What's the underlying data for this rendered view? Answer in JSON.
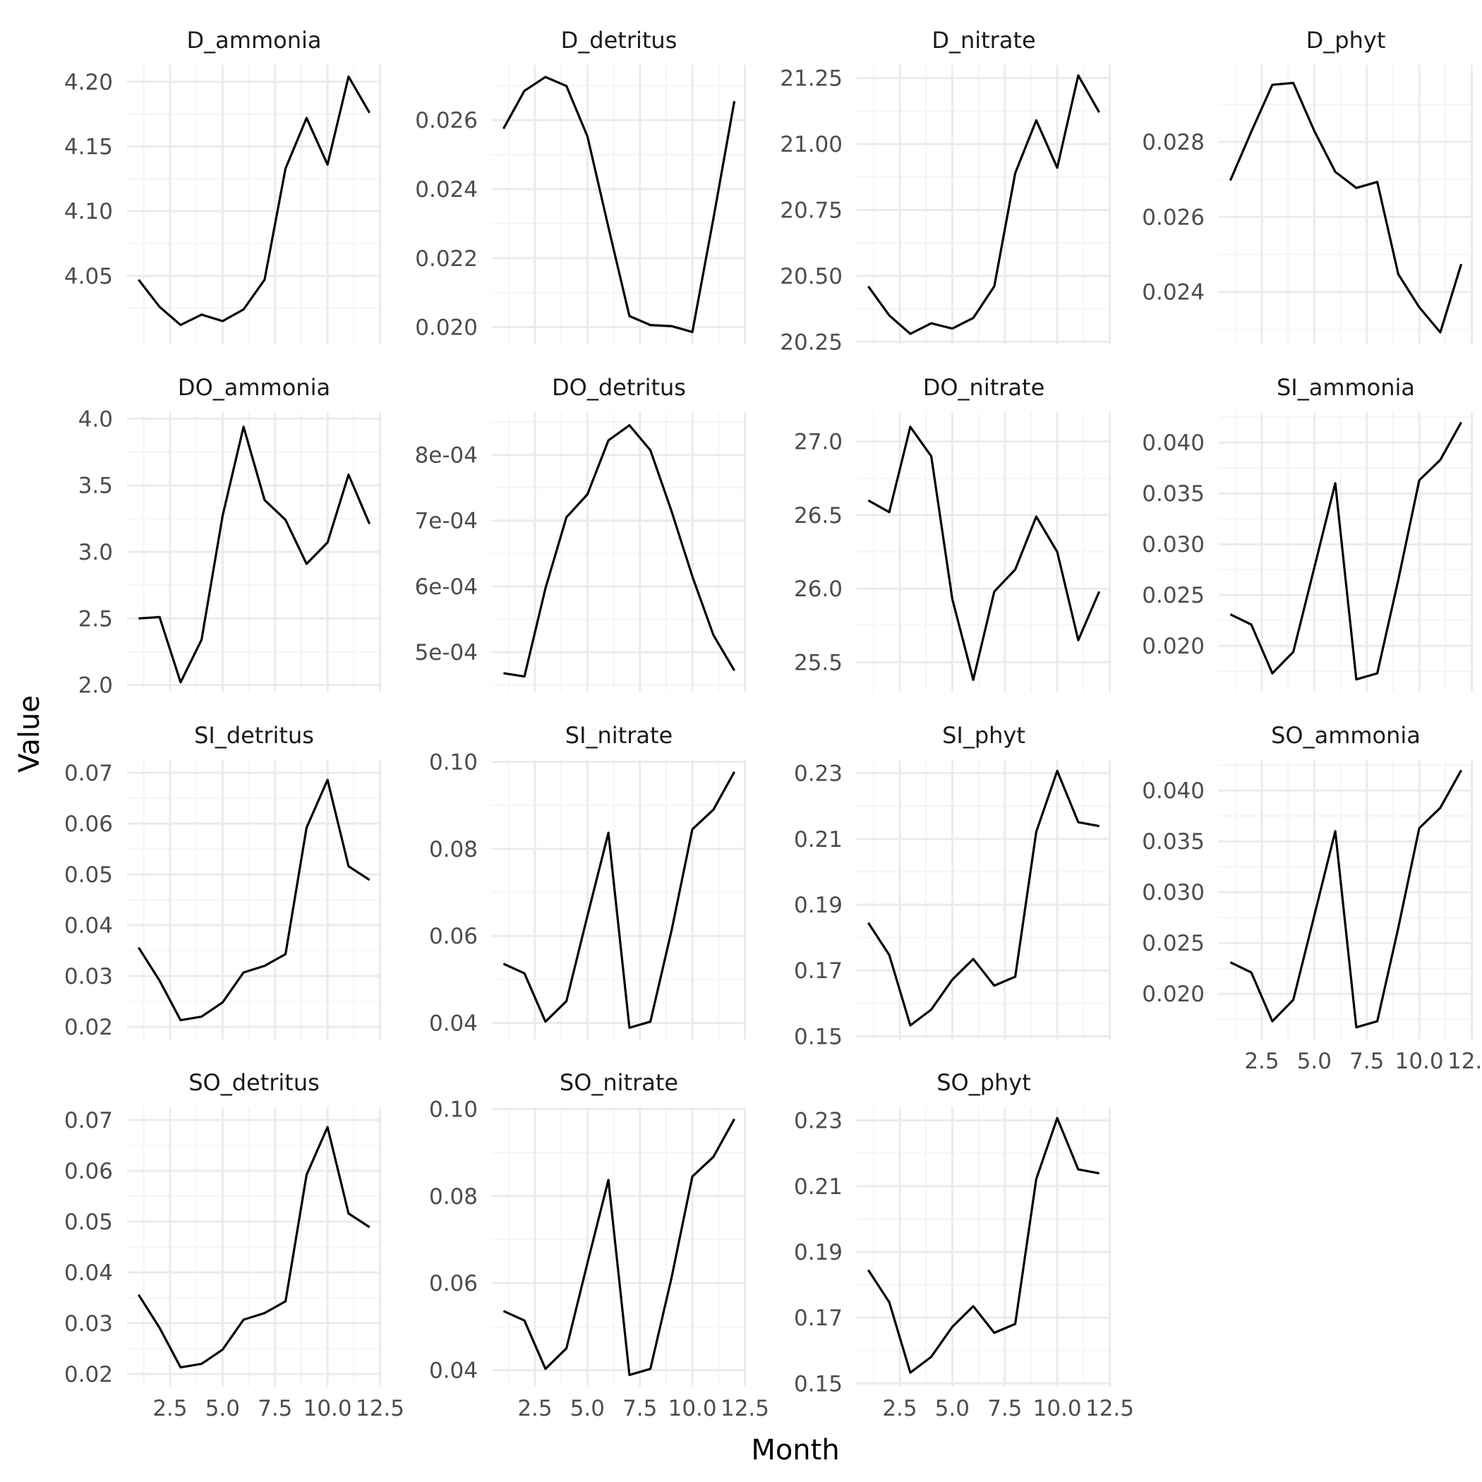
{
  "chart_data": {
    "type": "line",
    "layout": "facet-wrap",
    "xlabel": "Month",
    "ylabel": "Value",
    "grid": true,
    "x": [
      1,
      2,
      3,
      4,
      5,
      6,
      7,
      8,
      9,
      10,
      11,
      12
    ],
    "xlim": [
      0.45,
      12.55
    ],
    "x_ticks": [
      2.5,
      5.0,
      7.5,
      10.0,
      12.5
    ],
    "x_tick_labels": [
      "2.5",
      "5.0",
      "7.5",
      "10.0",
      "12.5"
    ],
    "panels": [
      {
        "name": "D_ammonia",
        "ylim": [
          3.997,
          4.213
        ],
        "y_ticks": [
          4.05,
          4.1,
          4.15,
          4.2
        ],
        "y_tick_labels": [
          "4.05",
          "4.10",
          "4.15",
          "4.20"
        ],
        "values": [
          4.047,
          4.026,
          4.012,
          4.02,
          4.015,
          4.024,
          4.047,
          4.133,
          4.172,
          4.136,
          4.204,
          4.176
        ]
      },
      {
        "name": "D_detritus",
        "ylim": [
          0.0195,
          0.0276
        ],
        "y_ticks": [
          0.02,
          0.022,
          0.024,
          0.026
        ],
        "y_tick_labels": [
          "0.020",
          "0.022",
          "0.024",
          "0.026"
        ],
        "values": [
          0.02575,
          0.02685,
          0.02725,
          0.02699,
          0.02553,
          0.0229,
          0.02032,
          0.02006,
          0.02003,
          0.01986,
          0.02315,
          0.02655
        ]
      },
      {
        "name": "D_nitrate",
        "ylim": [
          20.24,
          21.3
        ],
        "y_ticks": [
          20.25,
          20.5,
          20.75,
          21.0,
          21.25
        ],
        "y_tick_labels": [
          "20.25",
          "20.50",
          "20.75",
          "21.00",
          "21.25"
        ],
        "values": [
          20.46,
          20.35,
          20.28,
          20.32,
          20.3,
          20.34,
          20.46,
          20.89,
          21.09,
          20.91,
          21.26,
          21.12
        ]
      },
      {
        "name": "D_phyt",
        "ylim": [
          0.0226,
          0.03005
        ],
        "y_ticks": [
          0.024,
          0.026,
          0.028
        ],
        "y_tick_labels": [
          "0.024",
          "0.026",
          "0.028"
        ],
        "values": [
          0.02697,
          0.02827,
          0.02952,
          0.02957,
          0.02829,
          0.0272,
          0.02677,
          0.02693,
          0.02447,
          0.02359,
          0.02292,
          0.02474
        ]
      },
      {
        "name": "DO_ammonia",
        "ylim": [
          1.95,
          4.05
        ],
        "y_ticks": [
          2.0,
          2.5,
          3.0,
          3.5,
          4.0
        ],
        "y_tick_labels": [
          "2.0",
          "2.5",
          "3.0",
          "3.5",
          "4.0"
        ],
        "values": [
          2.5,
          2.51,
          2.02,
          2.34,
          3.27,
          3.94,
          3.39,
          3.24,
          2.91,
          3.07,
          3.58,
          3.21
        ]
      },
      {
        "name": "DO_detritus",
        "ylim": [
          0.00044,
          0.000865
        ],
        "y_ticks": [
          0.0005,
          0.0006,
          0.0007,
          0.0008
        ],
        "y_tick_labels": [
          "5e-04",
          "6e-04",
          "7e-04",
          "8e-04"
        ],
        "values": [
          0.000468,
          0.000463,
          0.000597,
          0.000705,
          0.00074,
          0.000822,
          0.000845,
          0.000807,
          0.000715,
          0.000615,
          0.000526,
          0.000472
        ]
      },
      {
        "name": "DO_nitrate",
        "ylim": [
          25.3,
          27.2
        ],
        "y_ticks": [
          25.5,
          26.0,
          26.5,
          27.0
        ],
        "y_tick_labels": [
          "25.5",
          "26.0",
          "26.5",
          "27.0"
        ],
        "values": [
          26.6,
          26.52,
          27.1,
          26.9,
          25.93,
          25.38,
          25.98,
          26.13,
          26.49,
          26.25,
          25.65,
          25.98
        ]
      },
      {
        "name": "SI_ammonia",
        "ylim": [
          0.0155,
          0.043
        ],
        "y_ticks": [
          0.02,
          0.025,
          0.03,
          0.035,
          0.04
        ],
        "y_tick_labels": [
          "0.020",
          "0.025",
          "0.030",
          "0.035",
          "0.040"
        ],
        "values": [
          0.0231,
          0.0221,
          0.0173,
          0.0194,
          0.0277,
          0.036,
          0.0167,
          0.0173,
          0.0265,
          0.0363,
          0.0383,
          0.042
        ]
      },
      {
        "name": "SI_detritus",
        "ylim": [
          0.0175,
          0.0725
        ],
        "y_ticks": [
          0.02,
          0.03,
          0.04,
          0.05,
          0.06,
          0.07
        ],
        "y_tick_labels": [
          "0.02",
          "0.03",
          "0.04",
          "0.05",
          "0.06",
          "0.07"
        ],
        "values": [
          0.0356,
          0.0291,
          0.0213,
          0.022,
          0.0248,
          0.0307,
          0.032,
          0.0343,
          0.0592,
          0.0686,
          0.0516,
          0.0489
        ]
      },
      {
        "name": "SI_nitrate",
        "ylim": [
          0.0362,
          0.1004
        ],
        "y_ticks": [
          0.04,
          0.06,
          0.08,
          0.1
        ],
        "y_tick_labels": [
          "0.04",
          "0.06",
          "0.08",
          "0.10"
        ],
        "values": [
          0.0536,
          0.0514,
          0.0403,
          0.045,
          0.0646,
          0.0837,
          0.0389,
          0.0403,
          0.0611,
          0.0845,
          0.089,
          0.0977
        ]
      },
      {
        "name": "SI_phyt",
        "ylim": [
          0.149,
          0.234
        ],
        "y_ticks": [
          0.15,
          0.17,
          0.19,
          0.21,
          0.23
        ],
        "y_tick_labels": [
          "0.15",
          "0.17",
          "0.19",
          "0.21",
          "0.23"
        ],
        "values": [
          0.1845,
          0.1747,
          0.1533,
          0.1581,
          0.1672,
          0.1735,
          0.1654,
          0.1681,
          0.2122,
          0.2307,
          0.2151,
          0.2139
        ]
      },
      {
        "name": "SO_ammonia",
        "ylim": [
          0.0155,
          0.043
        ],
        "y_ticks": [
          0.02,
          0.025,
          0.03,
          0.035,
          0.04
        ],
        "y_tick_labels": [
          "0.020",
          "0.025",
          "0.030",
          "0.035",
          "0.040"
        ],
        "values": [
          0.0231,
          0.0221,
          0.0173,
          0.0194,
          0.0277,
          0.036,
          0.0167,
          0.0173,
          0.0265,
          0.0363,
          0.0383,
          0.042
        ]
      },
      {
        "name": "SO_detritus",
        "ylim": [
          0.0175,
          0.0725
        ],
        "y_ticks": [
          0.02,
          0.03,
          0.04,
          0.05,
          0.06,
          0.07
        ],
        "y_tick_labels": [
          "0.02",
          "0.03",
          "0.04",
          "0.05",
          "0.06",
          "0.07"
        ],
        "values": [
          0.0356,
          0.0291,
          0.0213,
          0.022,
          0.0248,
          0.0307,
          0.032,
          0.0343,
          0.0592,
          0.0686,
          0.0516,
          0.0489
        ]
      },
      {
        "name": "SO_nitrate",
        "ylim": [
          0.0362,
          0.1004
        ],
        "y_ticks": [
          0.04,
          0.06,
          0.08,
          0.1
        ],
        "y_tick_labels": [
          "0.04",
          "0.06",
          "0.08",
          "0.10"
        ],
        "values": [
          0.0536,
          0.0514,
          0.0403,
          0.045,
          0.0646,
          0.0837,
          0.0389,
          0.0403,
          0.0611,
          0.0845,
          0.089,
          0.0977
        ]
      },
      {
        "name": "SO_phyt",
        "ylim": [
          0.149,
          0.234
        ],
        "y_ticks": [
          0.15,
          0.17,
          0.19,
          0.21,
          0.23
        ],
        "y_tick_labels": [
          "0.15",
          "0.17",
          "0.19",
          "0.21",
          "0.23"
        ],
        "values": [
          0.1845,
          0.1747,
          0.1533,
          0.1581,
          0.1672,
          0.1735,
          0.1654,
          0.1681,
          0.2122,
          0.2307,
          0.2151,
          0.2139
        ]
      }
    ]
  }
}
